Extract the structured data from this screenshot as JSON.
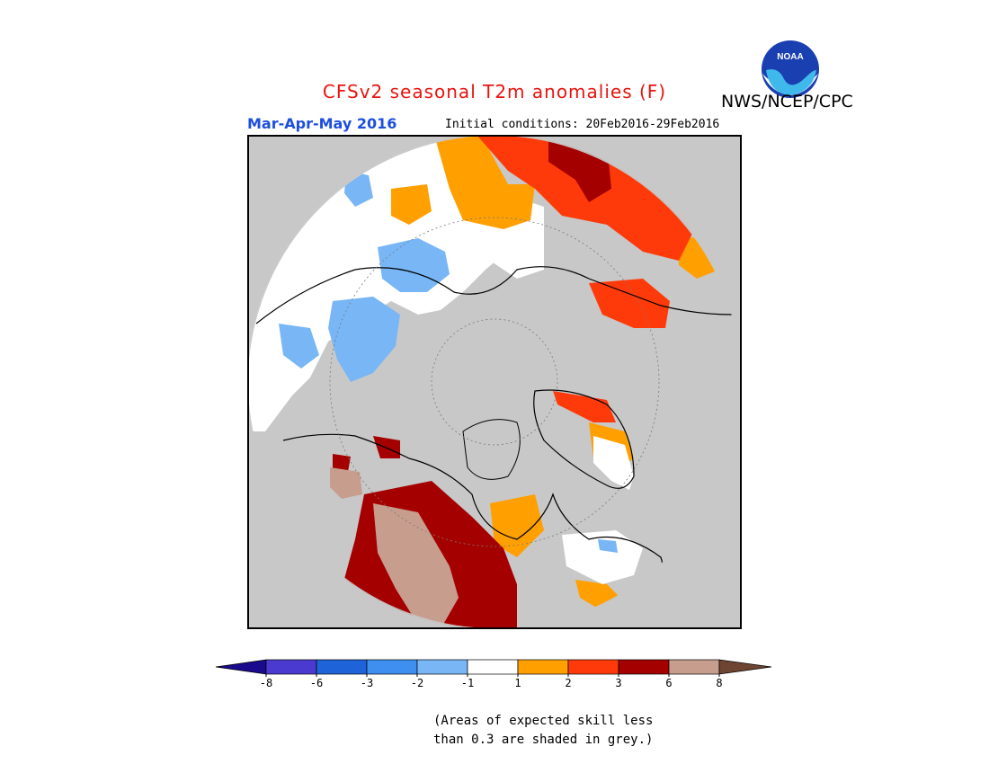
{
  "header": {
    "title": "CFSv2 seasonal T2m anomalies (F)",
    "organization": "NWS/NCEP/CPC",
    "logo_text": "NOAA",
    "season": "Mar-Apr-May 2016",
    "initial_conditions": "Initial conditions: 20Feb2016-29Feb2016"
  },
  "legend": {
    "levels": [
      "-8",
      "-6",
      "-3",
      "-2",
      "-1",
      "1",
      "2",
      "3",
      "6",
      "8"
    ],
    "colors": [
      "#1a0a8c",
      "#4a3ad0",
      "#1e64d8",
      "#3f8ff0",
      "#78b6f6",
      "#ffffff",
      "#ff9f00",
      "#ff3a0a",
      "#a50000",
      "#c79d8e",
      "#6e4432"
    ]
  },
  "note": {
    "line1": "(Areas of expected skill less",
    "line2": "than 0.3 are shaded in grey.)"
  },
  "map": {
    "projection": "north polar stereographic",
    "background_color": "#c8c8c8",
    "no_signal_color": "#ffffff",
    "land_outline_color": "#000000"
  }
}
